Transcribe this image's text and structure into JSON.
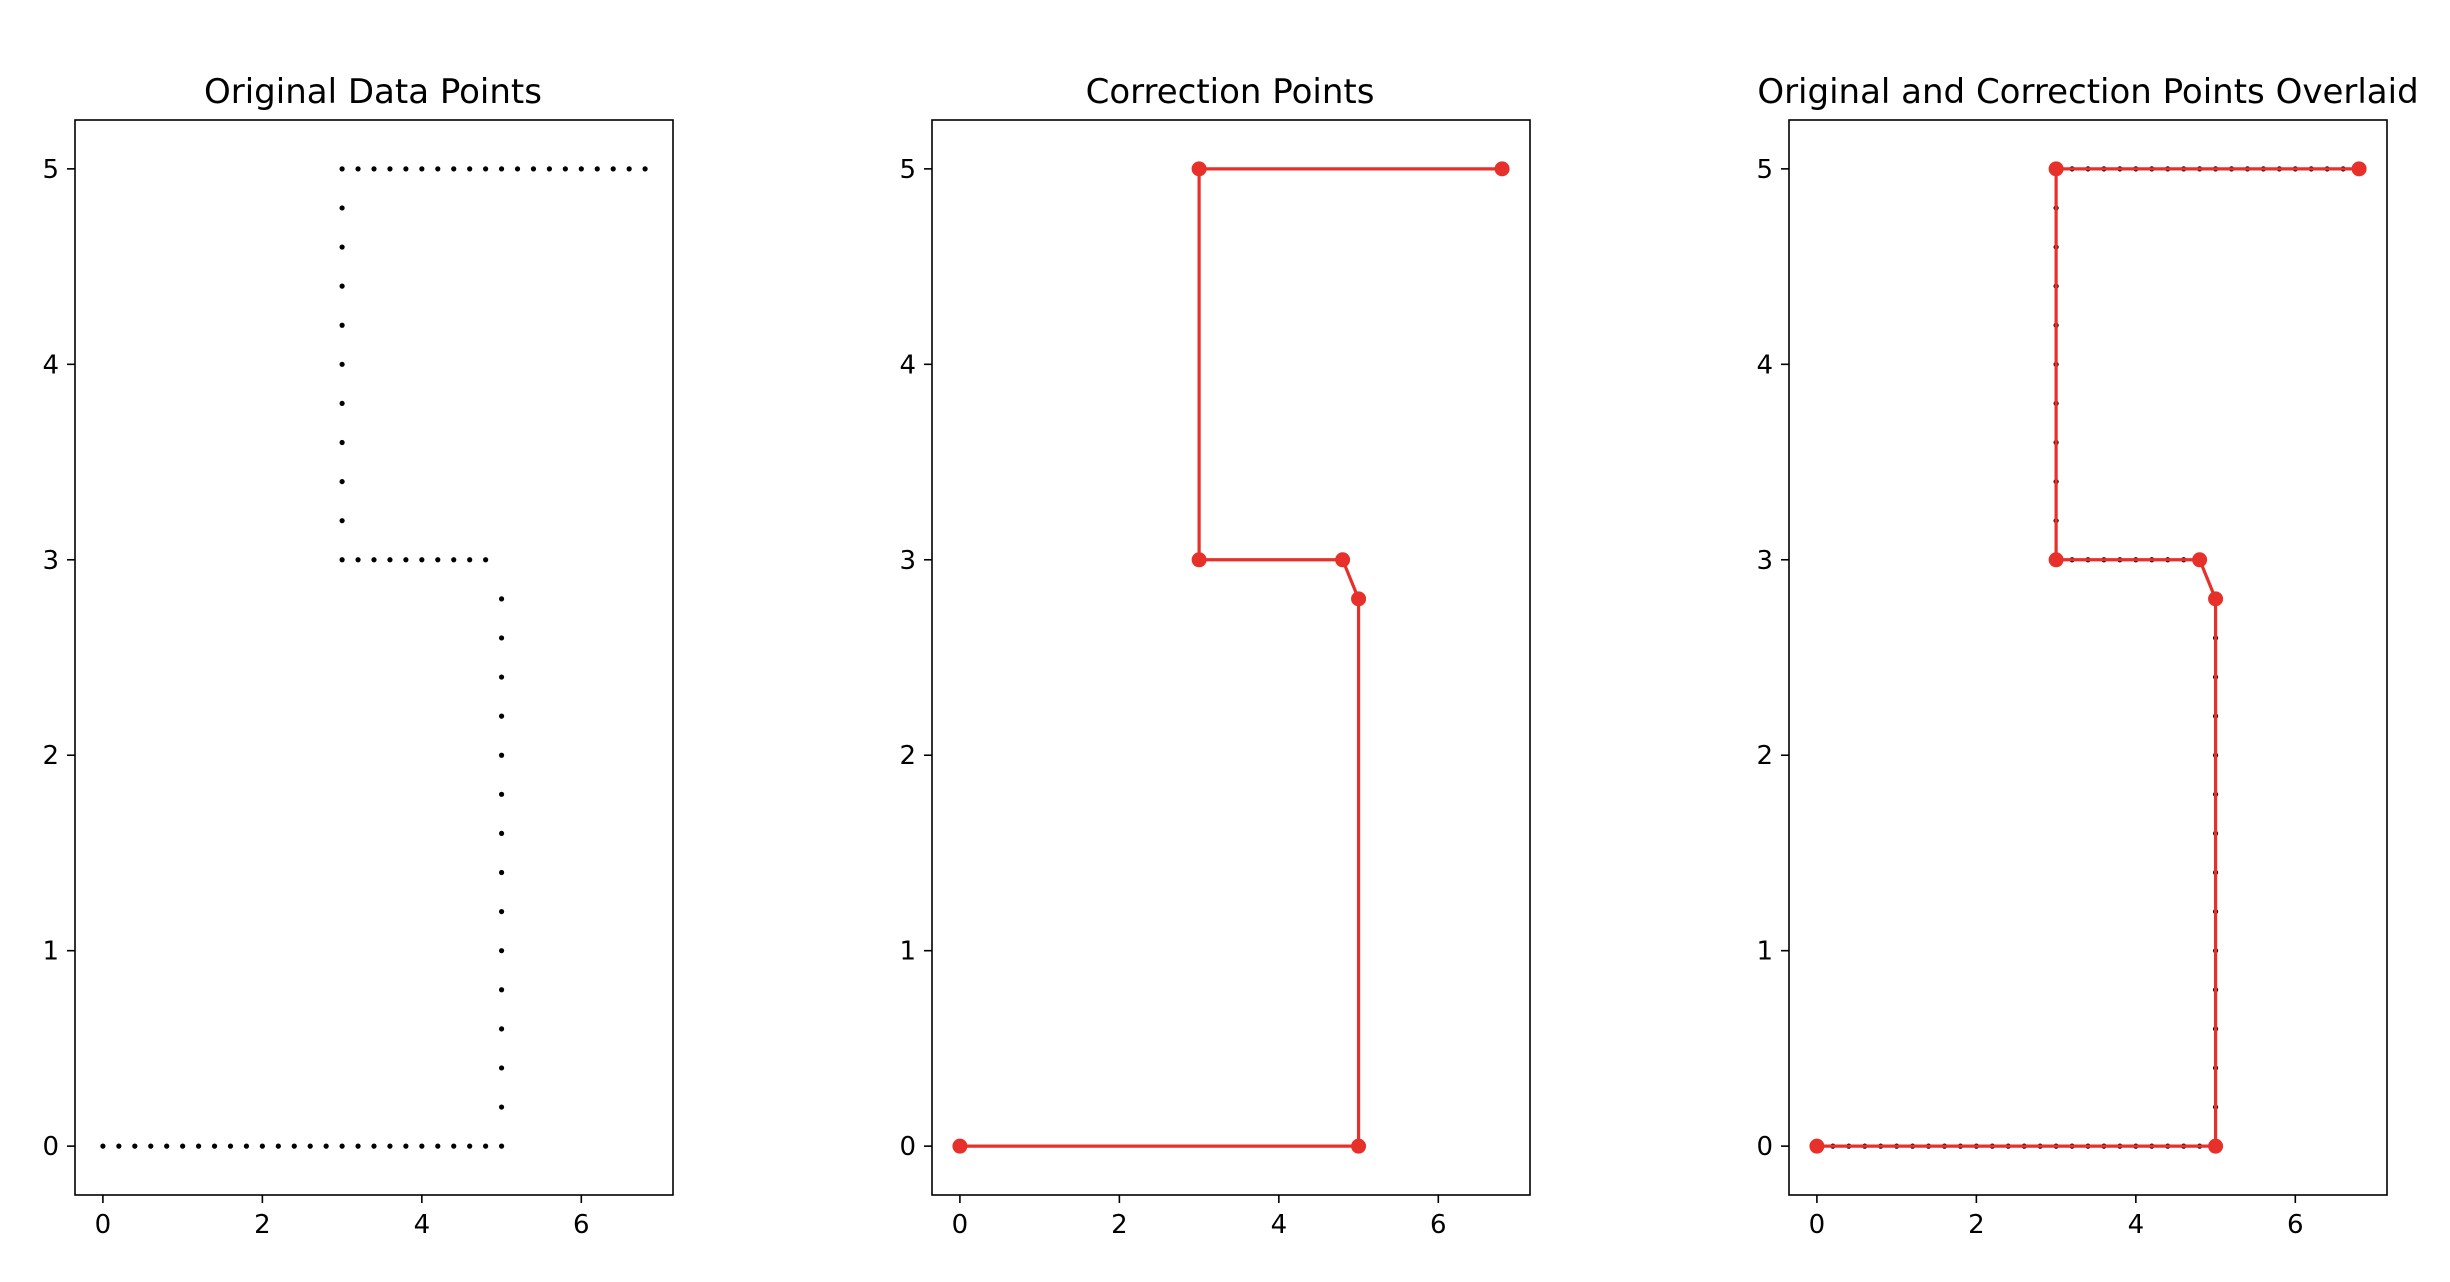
{
  "colors": {
    "original": "#000000",
    "correction": "#e8302a",
    "axes": "#000000"
  },
  "chart_data": [
    {
      "type": "scatter",
      "title": "Original Data Points",
      "xlabel": "",
      "ylabel": "",
      "xlim": [
        -0.35,
        7.15
      ],
      "ylim": [
        -0.25,
        5.25
      ],
      "xticks": [
        0,
        2,
        4,
        6
      ],
      "yticks": [
        0,
        1,
        2,
        3,
        4,
        5
      ],
      "grid": false,
      "series": [
        {
          "kind": "dots",
          "color": "#000000",
          "x": [
            0,
            0.2,
            0.4,
            0.6,
            0.8,
            1,
            1.2,
            1.4,
            1.6,
            1.8,
            2,
            2.2,
            2.4,
            2.6,
            2.8,
            3,
            3.2,
            3.4,
            3.6,
            3.8,
            4,
            4.2,
            4.4,
            4.6,
            4.8,
            5,
            5,
            5,
            5,
            5,
            5,
            5,
            5,
            5,
            5,
            5,
            5,
            5,
            5,
            5,
            4.8,
            4.6,
            4.4,
            4.2,
            4,
            3.8,
            3.6,
            3.4,
            3.2,
            3,
            3,
            3,
            3,
            3,
            3,
            3,
            3,
            3,
            3,
            3,
            3.2,
            3.4,
            3.6,
            3.8,
            4,
            4.2,
            4.4,
            4.6,
            4.8,
            5,
            5.2,
            5.4,
            5.6,
            5.8,
            6,
            6.2,
            6.4,
            6.6,
            6.8
          ],
          "y": [
            0,
            0,
            0,
            0,
            0,
            0,
            0,
            0,
            0,
            0,
            0,
            0,
            0,
            0,
            0,
            0,
            0,
            0,
            0,
            0,
            0,
            0,
            0,
            0,
            0,
            0,
            0.2,
            0.4,
            0.6,
            0.8,
            1,
            1.2,
            1.4,
            1.6,
            1.8,
            2,
            2.2,
            2.4,
            2.6,
            2.8,
            3,
            3,
            3,
            3,
            3,
            3,
            3,
            3,
            3,
            3,
            3.2,
            3.4,
            3.6,
            3.8,
            4,
            4.2,
            4.4,
            4.6,
            4.8,
            5,
            5,
            5,
            5,
            5,
            5,
            5,
            5,
            5,
            5,
            5,
            5,
            5,
            5,
            5,
            5,
            5,
            5,
            5,
            5
          ]
        }
      ]
    },
    {
      "type": "line",
      "title": "Correction Points",
      "xlabel": "",
      "ylabel": "",
      "xlim": [
        -0.35,
        7.15
      ],
      "ylim": [
        -0.25,
        5.25
      ],
      "xticks": [
        0,
        2,
        4,
        6
      ],
      "yticks": [
        0,
        1,
        2,
        3,
        4,
        5
      ],
      "grid": false,
      "series": [
        {
          "kind": "line-markers",
          "color": "#e8302a",
          "x": [
            0,
            5,
            5,
            4.8,
            3,
            3,
            6.8
          ],
          "y": [
            0,
            0,
            2.8,
            3,
            3,
            5,
            5
          ]
        }
      ]
    },
    {
      "type": "line",
      "title": "Original and Correction Points Overlaid",
      "xlabel": "",
      "ylabel": "",
      "xlim": [
        -0.35,
        7.15
      ],
      "ylim": [
        -0.25,
        5.25
      ],
      "xticks": [
        0,
        2,
        4,
        6
      ],
      "yticks": [
        0,
        1,
        2,
        3,
        4,
        5
      ],
      "grid": false,
      "series": [
        {
          "kind": "dots",
          "color": "#000000",
          "x": [
            0,
            0.2,
            0.4,
            0.6,
            0.8,
            1,
            1.2,
            1.4,
            1.6,
            1.8,
            2,
            2.2,
            2.4,
            2.6,
            2.8,
            3,
            3.2,
            3.4,
            3.6,
            3.8,
            4,
            4.2,
            4.4,
            4.6,
            4.8,
            5,
            5,
            5,
            5,
            5,
            5,
            5,
            5,
            5,
            5,
            5,
            5,
            5,
            5,
            5,
            4.8,
            4.6,
            4.4,
            4.2,
            4,
            3.8,
            3.6,
            3.4,
            3.2,
            3,
            3,
            3,
            3,
            3,
            3,
            3,
            3,
            3,
            3,
            3,
            3.2,
            3.4,
            3.6,
            3.8,
            4,
            4.2,
            4.4,
            4.6,
            4.8,
            5,
            5.2,
            5.4,
            5.6,
            5.8,
            6,
            6.2,
            6.4,
            6.6,
            6.8
          ],
          "y": [
            0,
            0,
            0,
            0,
            0,
            0,
            0,
            0,
            0,
            0,
            0,
            0,
            0,
            0,
            0,
            0,
            0,
            0,
            0,
            0,
            0,
            0,
            0,
            0,
            0,
            0,
            0.2,
            0.4,
            0.6,
            0.8,
            1,
            1.2,
            1.4,
            1.6,
            1.8,
            2,
            2.2,
            2.4,
            2.6,
            2.8,
            3,
            3,
            3,
            3,
            3,
            3,
            3,
            3,
            3,
            3,
            3.2,
            3.4,
            3.6,
            3.8,
            4,
            4.2,
            4.4,
            4.6,
            4.8,
            5,
            5,
            5,
            5,
            5,
            5,
            5,
            5,
            5,
            5,
            5,
            5,
            5,
            5,
            5,
            5,
            5,
            5,
            5,
            5
          ]
        },
        {
          "kind": "line-markers",
          "color": "#e8302a",
          "x": [
            0,
            5,
            5,
            4.8,
            3,
            3,
            6.8
          ],
          "y": [
            0,
            0,
            2.8,
            3,
            3,
            5,
            5
          ]
        }
      ]
    }
  ]
}
